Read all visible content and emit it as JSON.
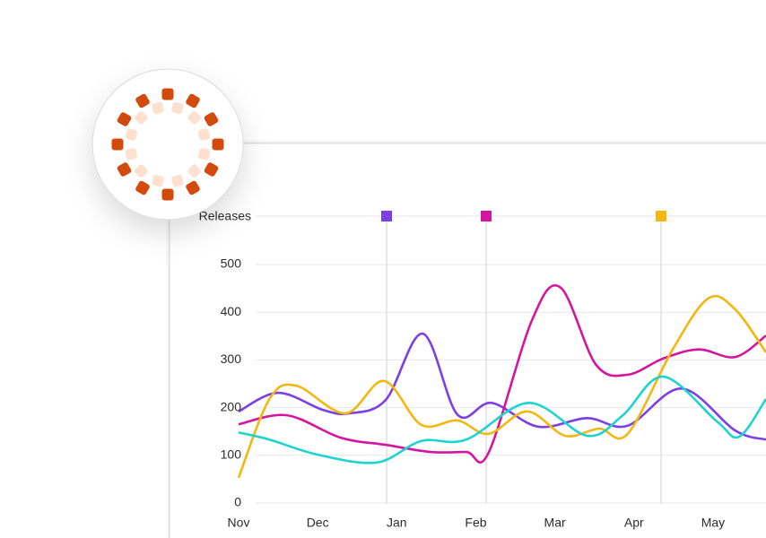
{
  "chart_data": {
    "type": "line",
    "annotation": "Releases",
    "xlim": [
      0,
      6.67
    ],
    "xticks": [
      {
        "value": 0,
        "label": "Nov"
      },
      {
        "value": 1,
        "label": "Dec"
      },
      {
        "value": 2,
        "label": "Jan"
      },
      {
        "value": 3,
        "label": "Feb"
      },
      {
        "value": 4,
        "label": "Mar"
      },
      {
        "value": 5,
        "label": "Apr"
      },
      {
        "value": 6,
        "label": "May"
      }
    ],
    "ylim": [
      0,
      500
    ],
    "yticks": [
      0,
      100,
      200,
      300,
      400,
      500
    ],
    "grid": true,
    "series": [
      {
        "color": "#7b3fe4",
        "x": [
          0,
          0.5,
          1.07,
          1.4,
          1.86,
          2.33,
          2.77,
          3.2,
          3.79,
          4.41,
          4.92,
          5.6,
          6.28,
          6.67
        ],
        "values": [
          192,
          231,
          195,
          188,
          216,
          355,
          185,
          210,
          160,
          178,
          162,
          240,
          152,
          133
        ]
      },
      {
        "color": "#d4169f",
        "x": [
          0,
          0.61,
          1.29,
          1.86,
          2.43,
          2.88,
          3.16,
          3.71,
          4.07,
          4.52,
          4.92,
          5.37,
          5.82,
          6.28,
          6.67
        ],
        "values": [
          165,
          184,
          137,
          122,
          107,
          107,
          105,
          383,
          452,
          290,
          269,
          303,
          322,
          306,
          351
        ]
      },
      {
        "color": "#f4b70f",
        "x": [
          0,
          0.39,
          0.73,
          1.35,
          1.84,
          2.31,
          2.77,
          3.16,
          3.65,
          4.13,
          4.56,
          4.92,
          5.49,
          5.94,
          6.28,
          6.67
        ],
        "values": [
          53,
          218,
          246,
          188,
          256,
          164,
          173,
          145,
          192,
          141,
          156,
          145,
          322,
          429,
          406,
          316
        ]
      },
      {
        "color": "#1fd3cf",
        "x": [
          0,
          0.39,
          1.01,
          1.75,
          2.31,
          2.88,
          3.67,
          4.41,
          4.86,
          5.37,
          6.05,
          6.33,
          6.67
        ],
        "values": [
          148,
          133,
          101,
          85,
          130,
          133,
          210,
          141,
          184,
          265,
          171,
          139,
          218
        ]
      }
    ]
  }
}
